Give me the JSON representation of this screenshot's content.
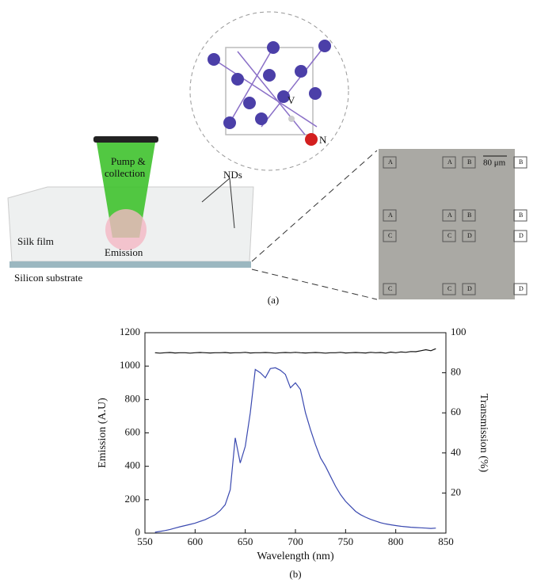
{
  "diagram": {
    "pump_line1": "Pump &",
    "pump_line2": "collection",
    "nds": "NDs",
    "silk": "Silk film",
    "emission": "Emission",
    "substrate": "Silicon substrate",
    "vacancy": "V",
    "nitrogen": "N",
    "scale": "80 μm",
    "caption": "(a)",
    "sem_labels": [
      "A",
      "A",
      "B",
      "B",
      "A",
      "A",
      "B",
      "B",
      "C",
      "C",
      "D",
      "D",
      "C",
      "C",
      "D",
      "D"
    ]
  },
  "chart_data": {
    "type": "line",
    "xlabel": "Wavelength (nm)",
    "ylabel": "Emission (A.U)",
    "y2label": "Transmission (%)",
    "caption": "(b)",
    "x": [
      560,
      565,
      570,
      575,
      580,
      585,
      590,
      595,
      600,
      605,
      610,
      615,
      620,
      625,
      630,
      635,
      640,
      645,
      650,
      655,
      660,
      665,
      670,
      675,
      680,
      685,
      690,
      695,
      700,
      705,
      710,
      715,
      720,
      725,
      730,
      735,
      740,
      745,
      750,
      755,
      760,
      765,
      770,
      775,
      780,
      785,
      790,
      795,
      800,
      805,
      810,
      815,
      820,
      825,
      830,
      835,
      840
    ],
    "series": [
      {
        "name": "Emission",
        "color": "#3a49b0",
        "values": [
          5,
          10,
          15,
          22,
          30,
          38,
          45,
          52,
          60,
          70,
          80,
          95,
          110,
          135,
          170,
          260,
          570,
          420,
          520,
          720,
          980,
          960,
          930,
          985,
          990,
          975,
          950,
          870,
          900,
          860,
          720,
          620,
          530,
          450,
          400,
          340,
          280,
          230,
          190,
          160,
          130,
          110,
          95,
          82,
          72,
          62,
          55,
          50,
          45,
          41,
          38,
          35,
          33,
          32,
          30,
          28,
          30
        ]
      },
      {
        "name": "Transmission",
        "color": "#111111",
        "axis": "y2",
        "values": [
          90,
          89.8,
          90,
          90.1,
          89.9,
          90,
          90,
          89.8,
          90,
          90.1,
          90,
          89.9,
          90,
          90,
          90.1,
          89.9,
          90,
          90,
          90.2,
          89.9,
          90,
          90,
          90.1,
          90,
          89.8,
          90,
          90.1,
          90,
          90.2,
          90,
          89.9,
          90,
          90.1,
          90,
          89.8,
          90,
          90,
          90.2,
          89.9,
          90,
          90.1,
          90,
          89.9,
          90.2,
          90,
          90.1,
          89.8,
          90.3,
          90,
          90.4,
          90.2,
          90.6,
          90.5,
          91,
          91.5,
          91,
          92
        ]
      }
    ],
    "xlim": [
      550,
      850
    ],
    "xticks": [
      550,
      600,
      650,
      700,
      750,
      800,
      850
    ],
    "ylim": [
      0,
      1200
    ],
    "yticks": [
      0,
      200,
      400,
      600,
      800,
      1000,
      1200
    ],
    "y2lim": [
      0,
      100
    ],
    "y2ticks": [
      20,
      40,
      60,
      80,
      100
    ]
  }
}
